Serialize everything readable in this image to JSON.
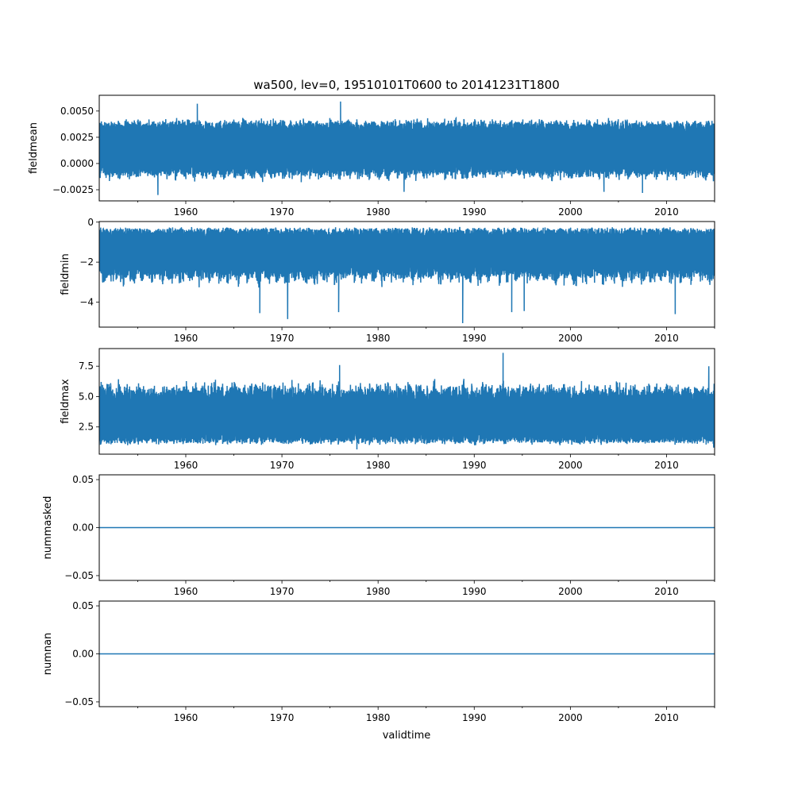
{
  "chart_data": [
    {
      "type": "line",
      "title": "wa500, lev=0, 19510101T0600 to 20141231T1800",
      "ylabel": "fieldmean",
      "xlabel": "",
      "xlim": [
        1951.0,
        2015.0
      ],
      "ylim": [
        -0.00356,
        0.0065
      ],
      "xticks": [
        1960,
        1970,
        1980,
        1990,
        2000,
        2010
      ],
      "yticks": [
        0.005,
        0.0025,
        0.0,
        -0.0025
      ],
      "ytick_labels": [
        "0.0050",
        "0.0025",
        "0.0000",
        "−0.0025"
      ],
      "typical_upper": 0.004,
      "typical_lower": -0.001,
      "upper_variation": 0.0005,
      "lower_variation": 0.0008,
      "extremes": [
        [
          1976.1,
          0.0059
        ],
        [
          1957.1,
          -0.003
        ],
        [
          1961.2,
          0.0057
        ],
        [
          1982.7,
          -0.0027
        ],
        [
          2003.5,
          -0.0027
        ],
        [
          2007.5,
          -0.0028
        ]
      ],
      "color": "#1f77b4"
    },
    {
      "type": "line",
      "ylabel": "fieldmin",
      "xlim": [
        1951.0,
        2015.0
      ],
      "ylim": [
        -5.25,
        0.03
      ],
      "xticks": [
        1960,
        1970,
        1980,
        1990,
        2000,
        2010
      ],
      "yticks": [
        0,
        -2,
        -4
      ],
      "ytick_labels": [
        "0",
        "−2",
        "−4"
      ],
      "typical_upper": -0.3,
      "typical_lower": -2.6,
      "upper_variation": 0.08,
      "lower_variation": 0.7,
      "extremes": [
        [
          1988.8,
          -5.05
        ],
        [
          1970.6,
          -4.85
        ],
        [
          1967.7,
          -4.55
        ],
        [
          2010.9,
          -4.6
        ],
        [
          1975.9,
          -4.5
        ],
        [
          1993.9,
          -4.5
        ],
        [
          1995.2,
          -4.45
        ]
      ],
      "color": "#1f77b4"
    },
    {
      "type": "line",
      "ylabel": "fieldmax",
      "xlim": [
        1951.0,
        2015.0
      ],
      "ylim": [
        0.26,
        8.95
      ],
      "xticks": [
        1960,
        1970,
        1980,
        1990,
        2000,
        2010
      ],
      "yticks": [
        7.5,
        5.0,
        2.5
      ],
      "ytick_labels": [
        "7.5",
        "5.0",
        "2.5"
      ],
      "typical_upper": 5.6,
      "typical_lower": 1.2,
      "upper_variation": 1.2,
      "lower_variation": 0.25,
      "extremes": [
        [
          1993.0,
          8.6
        ],
        [
          1976.0,
          7.6
        ],
        [
          2014.4,
          7.5
        ],
        [
          1977.8,
          0.65
        ],
        [
          2014.9,
          0.8
        ]
      ],
      "color": "#1f77b4"
    },
    {
      "type": "line",
      "ylabel": "nummasked",
      "xlim": [
        1951.0,
        2015.0
      ],
      "ylim": [
        -0.055,
        0.055
      ],
      "xticks": [
        1960,
        1970,
        1980,
        1990,
        2000,
        2010
      ],
      "yticks": [
        0.05,
        0.0,
        -0.05
      ],
      "ytick_labels": [
        "0.05",
        "0.00",
        "−0.05"
      ],
      "constant": 0,
      "color": "#1f77b4"
    },
    {
      "type": "line",
      "ylabel": "numnan",
      "xlabel": "validtime",
      "xlim": [
        1951.0,
        2015.0
      ],
      "ylim": [
        -0.055,
        0.055
      ],
      "xticks": [
        1960,
        1970,
        1980,
        1990,
        2000,
        2010
      ],
      "yticks": [
        0.05,
        0.0,
        -0.05
      ],
      "ytick_labels": [
        "0.05",
        "0.00",
        "−0.05"
      ],
      "constant": 0,
      "color": "#1f77b4"
    }
  ]
}
